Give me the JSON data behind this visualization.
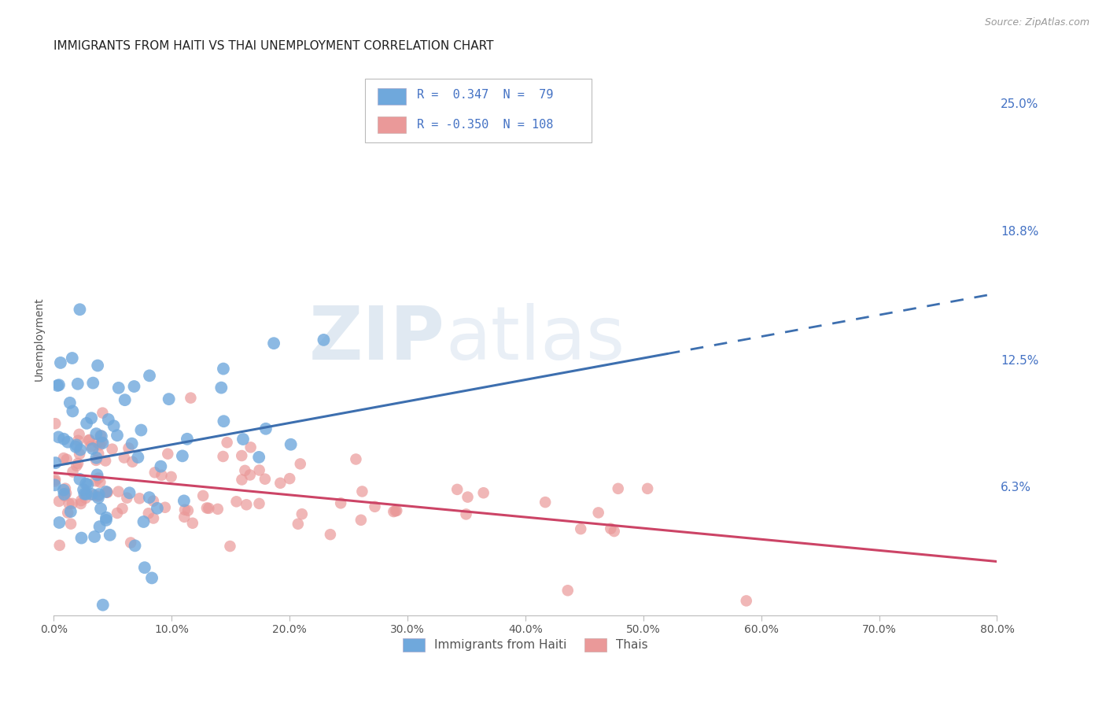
{
  "title": "IMMIGRANTS FROM HAITI VS THAI UNEMPLOYMENT CORRELATION CHART",
  "source": "Source: ZipAtlas.com",
  "ylabel": "Unemployment",
  "x_tick_labels": [
    "0.0%",
    "10.0%",
    "20.0%",
    "30.0%",
    "40.0%",
    "50.0%",
    "60.0%",
    "70.0%",
    "80.0%"
  ],
  "x_ticks": [
    0.0,
    10.0,
    20.0,
    30.0,
    40.0,
    50.0,
    60.0,
    70.0,
    80.0
  ],
  "y_tick_labels": [
    "6.3%",
    "12.5%",
    "18.8%",
    "25.0%"
  ],
  "y_ticks": [
    6.3,
    12.5,
    18.8,
    25.0
  ],
  "xlim": [
    0.0,
    80.0
  ],
  "ylim": [
    0.0,
    27.0
  ],
  "blue_color": "#6fa8dc",
  "pink_color": "#ea9999",
  "blue_line_color": "#3d6faf",
  "pink_line_color": "#cc4466",
  "legend_label_blue": "Immigrants from Haiti",
  "legend_label_pink": "Thais",
  "title_fontsize": 11,
  "axis_label_fontsize": 10,
  "tick_fontsize": 10,
  "background_color": "#ffffff",
  "blue_N": 79,
  "pink_N": 108,
  "blue_R": 0.347,
  "pink_R": -0.35,
  "blue_seed": 7,
  "pink_seed": 13
}
